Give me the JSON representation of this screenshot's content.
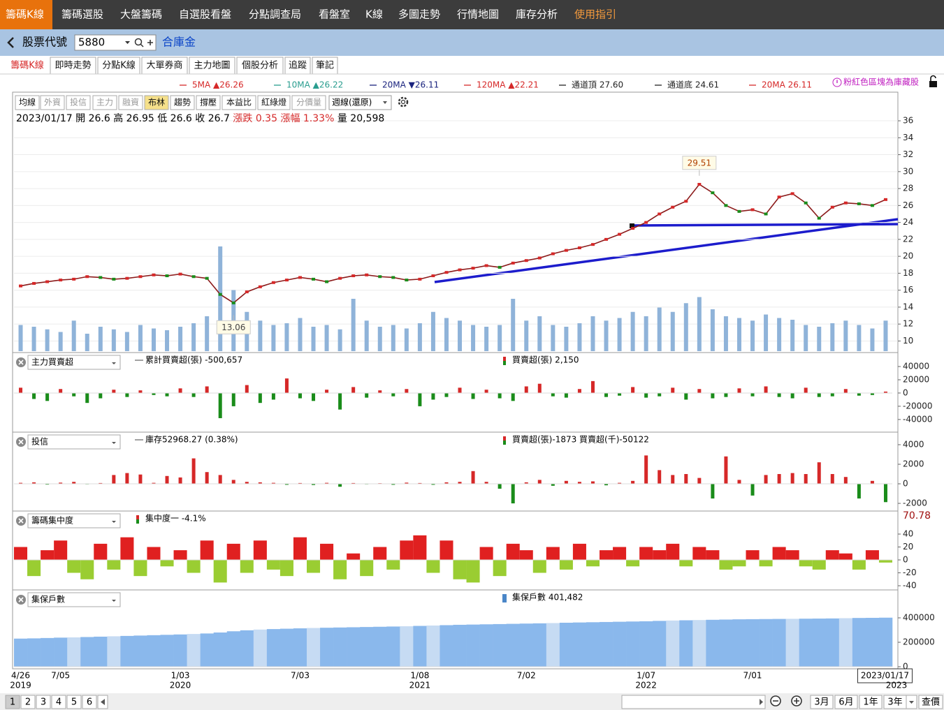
{
  "nav": {
    "tabs": [
      "籌碼K線",
      "籌碼選股",
      "大盤籌碼",
      "自選股看盤",
      "分點調查局",
      "看盤室",
      "K線",
      "多圖走勢",
      "行情地圖",
      "庫存分析",
      "使用指引"
    ]
  },
  "toolbar": {
    "label": "股票代號",
    "code": "5880",
    "name": "合庫金"
  },
  "subtabs": [
    "籌碼K線",
    "即時走勢",
    "分點K線",
    "大單券商",
    "主力地圖",
    "個股分析",
    "追蹤",
    "筆記"
  ],
  "ma_legend": [
    {
      "text": "5MA ▲26.26",
      "color": "#d62828"
    },
    {
      "text": "10MA ▲26.22",
      "color": "#2a9d8f"
    },
    {
      "text": "20MA ▼26.11",
      "color": "#1a237e"
    },
    {
      "text": "120MA ▲22.21",
      "color": "#d62828"
    },
    {
      "text": "通道頂 27.60",
      "color": "#222222"
    },
    {
      "text": "通道底 24.61",
      "color": "#222222"
    },
    {
      "text": "20MA 26.11",
      "color": "#d62828"
    }
  ],
  "note": "粉紅色區塊為庫藏股",
  "indicator_buttons": [
    "均線",
    "外資",
    "投信",
    "主力",
    "融資",
    "布林",
    "趨勢",
    "撐壓",
    "本益比",
    "紅綠燈",
    "分價量"
  ],
  "period": "週線(還原)",
  "info": {
    "date": "2023/01/17",
    "open": "開 26.6",
    "high": "高 26.95",
    "low": "低 26.6",
    "close": "收 26.7",
    "change": "漲跌 0.35",
    "pct": "漲幅 1.33%",
    "volume": "量 20,598"
  },
  "chart_data": {
    "type": "price_volume",
    "ylim": [
      8.8,
      39.3
    ],
    "yticks": [
      10,
      12,
      14,
      16,
      18,
      20,
      22,
      24,
      26,
      28,
      30,
      32,
      34,
      36
    ],
    "high": 29.51,
    "low": 13.06,
    "close": [
      16.5,
      16.8,
      17.0,
      17.2,
      17.3,
      17.6,
      17.5,
      17.3,
      17.4,
      17.6,
      17.8,
      17.7,
      17.9,
      17.6,
      17.4,
      15.5,
      14.5,
      15.8,
      16.4,
      16.9,
      17.2,
      17.5,
      17.3,
      17.0,
      17.4,
      17.7,
      17.8,
      17.6,
      17.5,
      17.2,
      17.3,
      17.7,
      18.1,
      18.4,
      18.6,
      18.9,
      18.7,
      19.2,
      19.5,
      19.8,
      20.3,
      20.7,
      21.0,
      21.4,
      22.0,
      22.6,
      23.3,
      24.0,
      25.0,
      25.8,
      26.5,
      28.5,
      27.5,
      26.0,
      25.3,
      25.5,
      25.0,
      27.0,
      27.4,
      26.3,
      24.5,
      25.8,
      26.3,
      26.2,
      26.0,
      26.7
    ],
    "close_color": "#8b1a1a",
    "volume": [
      30,
      28,
      25,
      22,
      35,
      20,
      28,
      25,
      22,
      30,
      26,
      24,
      28,
      32,
      40,
      120,
      70,
      45,
      35,
      30,
      32,
      38,
      28,
      30,
      25,
      60,
      35,
      28,
      30,
      26,
      32,
      45,
      38,
      35,
      30,
      28,
      30,
      60,
      35,
      40,
      30,
      28,
      32,
      40,
      35,
      38,
      45,
      40,
      50,
      45,
      55,
      62,
      48,
      40,
      38,
      35,
      42,
      38,
      36,
      30,
      28,
      32,
      35,
      30,
      26,
      35
    ],
    "volume_color": "#8fb3d9",
    "x_labels": [
      "4/26",
      null,
      null,
      "7/05",
      null,
      null,
      null,
      null,
      null,
      null,
      null,
      null,
      "1/03",
      null,
      null,
      null,
      null,
      null,
      null,
      null,
      null,
      "7/03",
      null,
      null,
      null,
      null,
      null,
      null,
      null,
      null,
      "1/08",
      null,
      null,
      null,
      null,
      null,
      null,
      null,
      "7/02",
      null,
      null,
      null,
      null,
      null,
      null,
      null,
      null,
      "1/07",
      null,
      null,
      null,
      null,
      null,
      null,
      null,
      "7/01",
      null,
      null,
      null,
      null,
      null,
      null,
      null,
      null,
      null,
      "2023/01/17"
    ],
    "x_years": [
      "2019",
      null,
      null,
      null,
      null,
      null,
      null,
      null,
      null,
      null,
      null,
      null,
      "2020",
      null,
      null,
      null,
      null,
      null,
      null,
      null,
      null,
      null,
      null,
      null,
      null,
      null,
      null,
      null,
      null,
      null,
      "2021",
      null,
      null,
      null,
      null,
      null,
      null,
      null,
      null,
      null,
      null,
      null,
      null,
      null,
      null,
      null,
      null,
      "2022",
      null,
      null,
      null,
      null,
      null,
      null,
      null,
      null,
      null,
      null,
      null,
      null,
      null,
      null,
      null,
      null,
      null,
      "2023"
    ],
    "panels": [
      {
        "type": "bar",
        "selector": "主力買賣超",
        "legend": [
          {
            "text": "累計買賣超(張) -500,657",
            "icon": "line",
            "side": "left"
          },
          {
            "text": "買賣超(張) 2,150",
            "icon": "bar",
            "side": "right"
          }
        ],
        "ylim": [
          -57000,
          59000
        ],
        "yticks": [
          40000,
          20000,
          0,
          -20000,
          -40000
        ],
        "values": [
          8000,
          -9000,
          -12000,
          6000,
          -5000,
          -15000,
          -8000,
          5000,
          -6000,
          4000,
          -3000,
          -5000,
          7000,
          -6000,
          10000,
          -38000,
          -20000,
          12000,
          -15000,
          -10000,
          22000,
          -8000,
          -12000,
          5000,
          -25000,
          9000,
          -7000,
          4000,
          -5000,
          6000,
          -20000,
          -10000,
          -6000,
          8000,
          -9000,
          5000,
          -8000,
          -12000,
          10000,
          14000,
          -5000,
          -7000,
          6000,
          18000,
          -6000,
          -4000,
          9000,
          -7000,
          -5000,
          8000,
          -10000,
          6000,
          -8000,
          -6000,
          7000,
          -5000,
          10000,
          -6000,
          -8000,
          8000,
          -6000,
          -5000,
          6000,
          -4000,
          -3000,
          2150
        ]
      },
      {
        "type": "bar",
        "selector": "投信",
        "legend": [
          {
            "text": "庫存52968.27 (0.38%)",
            "icon": "line",
            "side": "left"
          },
          {
            "text": "買賣超(張)-1873 買賣超(千)-50122",
            "icon": "bar",
            "side": "right"
          }
        ],
        "ylim": [
          -2640,
          5140
        ],
        "yticks": [
          4000,
          2000,
          0,
          -2000
        ],
        "values": [
          100,
          150,
          -80,
          120,
          200,
          -50,
          80,
          900,
          1100,
          950,
          100,
          800,
          650,
          2600,
          1200,
          900,
          400,
          200,
          150,
          100,
          -100,
          80,
          -120,
          100,
          -300,
          80,
          -50,
          60,
          -100,
          120,
          80,
          -100,
          150,
          200,
          1300,
          200,
          -500,
          -2000,
          150,
          400,
          -200,
          300,
          200,
          250,
          -150,
          100,
          300,
          2900,
          1400,
          900,
          1000,
          600,
          -1500,
          2800,
          400,
          -1200,
          900,
          1000,
          1100,
          1000,
          2200,
          1000,
          700,
          -1500,
          300,
          -1873
        ]
      },
      {
        "type": "area",
        "selector": "籌碼集中度",
        "legend": [
          {
            "text": "集中度一  -4.1%",
            "icon": "bar",
            "side": "left"
          }
        ],
        "current_label": "70.78",
        "ylim": [
          -44.3,
          73.5
        ],
        "yticks": [
          40,
          20,
          0,
          -20,
          -40
        ],
        "values": [
          20,
          -25,
          15,
          30,
          -20,
          -30,
          25,
          -15,
          35,
          -25,
          20,
          -10,
          15,
          -20,
          30,
          -35,
          25,
          -20,
          30,
          -15,
          -25,
          35,
          -20,
          25,
          -30,
          10,
          -25,
          20,
          -15,
          30,
          38,
          -20,
          30,
          -30,
          -35,
          20,
          -25,
          25,
          15,
          -20,
          20,
          -15,
          25,
          -10,
          15,
          20,
          -10,
          20,
          15,
          25,
          -10,
          20,
          15,
          -15,
          -10,
          15,
          -10,
          20,
          15,
          -10,
          -15,
          15,
          10,
          -15,
          15,
          -4.1
        ]
      },
      {
        "type": "column",
        "selector": "集保戶數",
        "legend": [
          {
            "text": "集保戶數 401,482",
            "icon": "block",
            "side": "right"
          }
        ],
        "ylim": [
          -11400,
          617000
        ],
        "yticks": [
          400000,
          200000,
          0
        ],
        "values": [
          230000,
          232000,
          235000,
          238000,
          240000,
          243000,
          246000,
          249000,
          252000,
          255000,
          258000,
          261000,
          264000,
          268000,
          272000,
          280000,
          290000,
          298000,
          304000,
          308000,
          311000,
          314000,
          317000,
          319000,
          321000,
          323000,
          325000,
          327000,
          329000,
          331000,
          334000,
          337000,
          340000,
          343000,
          345000,
          347000,
          349000,
          351000,
          353000,
          355000,
          357000,
          360000,
          362000,
          364000,
          366000,
          368000,
          370000,
          372000,
          375000,
          378000,
          380000,
          382000,
          384000,
          386000,
          388000,
          389000,
          390000,
          391000,
          392000,
          393000,
          394000,
          395000,
          397000,
          399000,
          400000,
          401482
        ]
      }
    ]
  },
  "footer": {
    "pages": [
      "1",
      "2",
      "3",
      "4",
      "5",
      "6"
    ],
    "ranges": [
      "3月",
      "6月",
      "1年",
      "3年"
    ],
    "query": "查價"
  }
}
